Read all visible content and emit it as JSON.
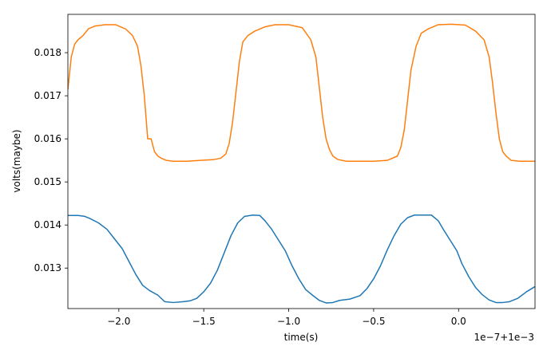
{
  "chart_data": {
    "type": "line",
    "title": "",
    "xlabel": "time(s)",
    "ylabel": "volts(maybe)",
    "x_offset_text": "1e−7+1e−3",
    "xlim": [
      -2.3,
      0.45
    ],
    "ylim": [
      0.01206,
      0.01889
    ],
    "grid": false,
    "legend": "none",
    "x_ticks": [
      -2.0,
      -1.5,
      -1.0,
      -0.5,
      0.0
    ],
    "x_tick_labels": [
      "−2.0",
      "−1.5",
      "−1.0",
      "−0.5",
      "0.0"
    ],
    "y_ticks": [
      0.013,
      0.014,
      0.015,
      0.016,
      0.017,
      0.018
    ],
    "y_tick_labels": [
      "0.013",
      "0.014",
      "0.015",
      "0.016",
      "0.017",
      "0.018"
    ],
    "series": [
      {
        "color": "#1f77b4",
        "x": [
          -2.3,
          -2.24,
          -2.2,
          -2.17,
          -2.12,
          -2.07,
          -2.03,
          -1.98,
          -1.94,
          -1.9,
          -1.86,
          -1.82,
          -1.77,
          -1.73,
          -1.68,
          -1.62,
          -1.58,
          -1.54,
          -1.5,
          -1.46,
          -1.42,
          -1.38,
          -1.34,
          -1.3,
          -1.26,
          -1.21,
          -1.17,
          -1.14,
          -1.1,
          -1.06,
          -1.02,
          -0.98,
          -0.94,
          -0.9,
          -0.86,
          -0.82,
          -0.78,
          -0.74,
          -0.7,
          -0.64,
          -0.58,
          -0.54,
          -0.5,
          -0.46,
          -0.42,
          -0.38,
          -0.34,
          -0.3,
          -0.26,
          -0.22,
          -0.16,
          -0.12,
          -0.09,
          -0.05,
          -0.01,
          0.02,
          0.06,
          0.1,
          0.14,
          0.18,
          0.22,
          0.26,
          0.3,
          0.35,
          0.4,
          0.45
        ],
        "y": [
          0.01422,
          0.01422,
          0.0142,
          0.01415,
          0.01405,
          0.0139,
          0.0137,
          0.01345,
          0.01315,
          0.01285,
          0.0126,
          0.01248,
          0.01237,
          0.01222,
          0.0122,
          0.01222,
          0.01224,
          0.0123,
          0.01245,
          0.01265,
          0.01295,
          0.01335,
          0.01375,
          0.01405,
          0.0142,
          0.01423,
          0.01422,
          0.0141,
          0.0139,
          0.01365,
          0.0134,
          0.01305,
          0.01275,
          0.0125,
          0.01237,
          0.01225,
          0.01219,
          0.0122,
          0.01225,
          0.01228,
          0.01236,
          0.01252,
          0.01275,
          0.01305,
          0.01342,
          0.01375,
          0.01402,
          0.01417,
          0.01423,
          0.01423,
          0.01423,
          0.0141,
          0.0139,
          0.01365,
          0.0134,
          0.0131,
          0.0128,
          0.01255,
          0.01238,
          0.01226,
          0.0122,
          0.0122,
          0.01222,
          0.0123,
          0.01245,
          0.01257
        ]
      },
      {
        "color": "#ff7f0e",
        "x": [
          -2.3,
          -2.28,
          -2.26,
          -2.24,
          -2.21,
          -2.18,
          -2.14,
          -2.08,
          -2.02,
          -1.96,
          -1.92,
          -1.89,
          -1.87,
          -1.85,
          -1.83,
          -1.81,
          -1.79,
          -1.77,
          -1.75,
          -1.72,
          -1.68,
          -1.6,
          -1.52,
          -1.44,
          -1.4,
          -1.37,
          -1.35,
          -1.33,
          -1.31,
          -1.29,
          -1.27,
          -1.24,
          -1.2,
          -1.14,
          -1.08,
          -1.0,
          -0.92,
          -0.87,
          -0.84,
          -0.82,
          -0.8,
          -0.78,
          -0.76,
          -0.74,
          -0.71,
          -0.66,
          -0.58,
          -0.5,
          -0.42,
          -0.36,
          -0.34,
          -0.32,
          -0.3,
          -0.28,
          -0.25,
          -0.22,
          -0.18,
          -0.12,
          -0.04,
          0.04,
          0.1,
          0.15,
          0.18,
          0.2,
          0.22,
          0.24,
          0.26,
          0.28,
          0.31,
          0.36,
          0.45
        ],
        "y": [
          0.01715,
          0.0179,
          0.0182,
          0.0183,
          0.0184,
          0.01855,
          0.01862,
          0.01865,
          0.01865,
          0.01855,
          0.0184,
          0.01815,
          0.0177,
          0.017,
          0.016,
          0.016,
          0.0157,
          0.0156,
          0.01555,
          0.0155,
          0.01548,
          0.01548,
          0.0155,
          0.01552,
          0.01555,
          0.01565,
          0.0159,
          0.0164,
          0.0171,
          0.0178,
          0.01825,
          0.0184,
          0.0185,
          0.0186,
          0.01865,
          0.01865,
          0.01858,
          0.0183,
          0.0179,
          0.0172,
          0.0165,
          0.016,
          0.01575,
          0.0156,
          0.01552,
          0.01548,
          0.01548,
          0.01548,
          0.0155,
          0.0156,
          0.0158,
          0.0162,
          0.0169,
          0.0176,
          0.01815,
          0.01845,
          0.01855,
          0.01865,
          0.01866,
          0.01864,
          0.0185,
          0.0183,
          0.0179,
          0.0173,
          0.0166,
          0.016,
          0.0157,
          0.0156,
          0.0155,
          0.01548,
          0.01548
        ]
      }
    ]
  }
}
